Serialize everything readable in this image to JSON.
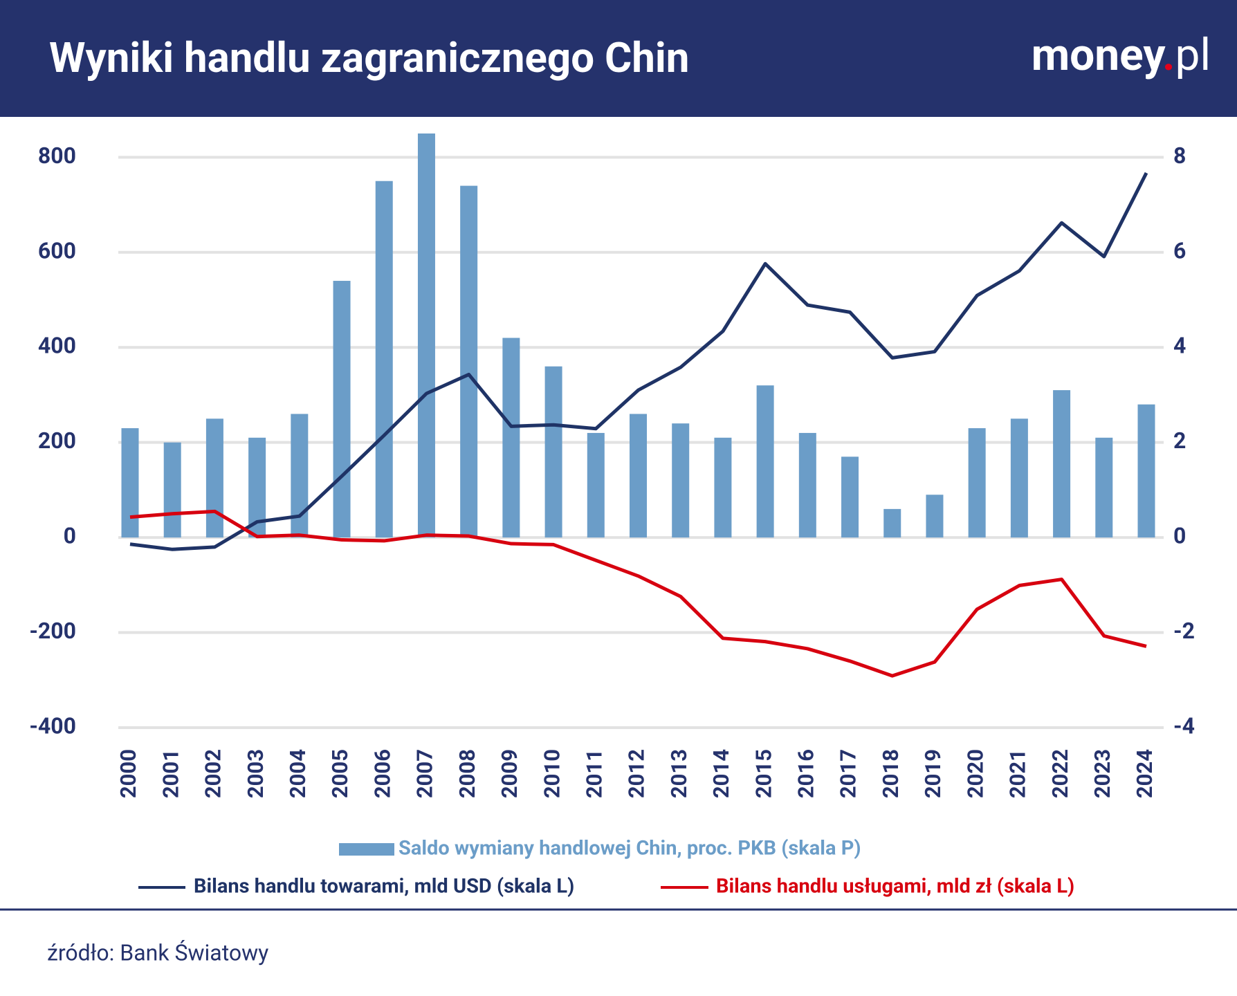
{
  "chart_data": {
    "type": "combo",
    "title": "Wyniki handlu zagranicznego Chin",
    "logo": {
      "main": "money",
      "dot": ".",
      "suffix": "pl"
    },
    "source": "źródło: Bank Światowy",
    "categories": [
      "2000",
      "2001",
      "2002",
      "2003",
      "2004",
      "2005",
      "2006",
      "2007",
      "2008",
      "2009",
      "2010",
      "2011",
      "2012",
      "2013",
      "2014",
      "2015",
      "2016",
      "2017",
      "2018",
      "2019",
      "2020",
      "2021",
      "2022",
      "2023",
      "2024"
    ],
    "ylim": [
      -400,
      850
    ],
    "yticks": [
      -400,
      -200,
      0,
      200,
      400,
      600,
      800
    ],
    "y2lim": [
      -4,
      8.5
    ],
    "y2ticks": [
      -4,
      -2,
      0,
      2,
      4,
      6,
      8
    ],
    "grid": true,
    "series": [
      {
        "name": "Saldo wymiany handlowej Chin, proc. PKB (skala P)",
        "type": "bar",
        "axis": "y2",
        "color": "#6b9dc8",
        "values": [
          2.3,
          2.0,
          2.5,
          2.1,
          2.6,
          5.4,
          7.5,
          8.5,
          7.4,
          4.2,
          3.6,
          2.2,
          2.6,
          2.4,
          2.1,
          3.2,
          2.2,
          1.7,
          0.6,
          0.9,
          2.3,
          2.5,
          3.1,
          2.1,
          2.8
        ]
      },
      {
        "name": "Bilans handlu towarami, mld USD (skala L)",
        "type": "line",
        "axis": "y",
        "color": "#1f3366",
        "values": [
          -14,
          -25,
          -20,
          33,
          45,
          129,
          215,
          303,
          343,
          234,
          237,
          229,
          310,
          358,
          434,
          576,
          489,
          474,
          378,
          391,
          509,
          561,
          662,
          591,
          767
        ]
      },
      {
        "name": "Bilans handlu usługami, mld zł (skala L)",
        "type": "line",
        "axis": "y",
        "color": "#d7000f",
        "values": [
          43,
          50,
          55,
          2,
          5,
          -5,
          -7,
          5,
          3,
          -13,
          -15,
          -48,
          -81,
          -124,
          -212,
          -219,
          -234,
          -260,
          -291,
          -262,
          -151,
          -101,
          -88,
          -207,
          -229
        ]
      }
    ]
  }
}
